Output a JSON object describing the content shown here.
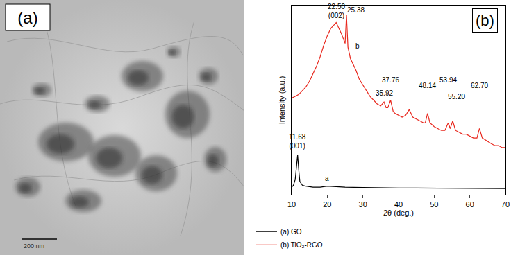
{
  "image_panel": {
    "label": "(a)",
    "scale_bar": "200 nm"
  },
  "chart_data": {
    "type": "line",
    "panel_label": "(b)",
    "x_label": "2θ (deg.)",
    "y_label": "Intensity (a.u.)",
    "xlim": [
      10,
      70
    ],
    "xticks": [
      10,
      20,
      30,
      40,
      50,
      60,
      70
    ],
    "ylim": [
      0,
      100
    ],
    "yticks": [],
    "tick_labels": "x",
    "grid": false,
    "legend": "bottom left",
    "series": [
      {
        "name": "(a) GO",
        "color": "#000000",
        "x": [
          10,
          10.5,
          11,
          11.3,
          11.68,
          12,
          12.3,
          13,
          14,
          16,
          18,
          20,
          25,
          30,
          35,
          40,
          45,
          50,
          55,
          60,
          65,
          70
        ],
        "values": [
          4,
          5,
          8,
          14,
          21,
          13,
          7,
          5,
          4.5,
          4,
          4,
          4.5,
          4,
          3.8,
          3.6,
          3.5,
          3.5,
          3.4,
          3.3,
          3.3,
          3.2,
          3.2
        ]
      },
      {
        "name": "(b) TiO₂-RGO",
        "color": "#e8281e",
        "x": [
          10,
          11,
          12,
          13,
          14,
          15,
          16,
          17,
          18,
          19,
          20,
          21,
          22,
          22.5,
          23,
          24,
          25,
          25.38,
          25.8,
          26.5,
          27,
          28,
          29,
          30,
          31,
          32,
          33,
          34,
          35,
          35.92,
          36.5,
          37,
          37.76,
          38.5,
          39,
          40,
          41,
          42,
          43,
          44,
          45,
          46,
          47,
          47.5,
          48.14,
          48.8,
          50,
          51,
          52,
          53,
          53.94,
          54.5,
          55.2,
          56,
          57,
          58,
          59,
          60,
          61,
          62,
          62.7,
          63.5,
          65,
          66,
          67,
          68,
          69,
          70
        ],
        "values": [
          51,
          52,
          53,
          55,
          57,
          60,
          64,
          68,
          73,
          79,
          84,
          88,
          90,
          91,
          89,
          85,
          80,
          95,
          78,
          72,
          70,
          66,
          61,
          58,
          55,
          52,
          50,
          48,
          47,
          49,
          46,
          46,
          50,
          44,
          43,
          42,
          41,
          42,
          45,
          41,
          40,
          39,
          38,
          38,
          43,
          38,
          36,
          35,
          34,
          34,
          38,
          35,
          39,
          34,
          33,
          32,
          32,
          31,
          30,
          30,
          35,
          30,
          28,
          27,
          26,
          26,
          25,
          25
        ]
      }
    ],
    "annotations": [
      {
        "text": "22.50\n(002)",
        "x": 22.5,
        "y": 92
      },
      {
        "text": "25.38",
        "x": 28,
        "y": 95
      },
      {
        "text": "b",
        "x": 28.5,
        "y": 76
      },
      {
        "text": "35.92",
        "x": 35.92,
        "y": 51
      },
      {
        "text": "37.76",
        "x": 37.76,
        "y": 58
      },
      {
        "text": "48.14",
        "x": 48.14,
        "y": 55
      },
      {
        "text": "53.94",
        "x": 53.94,
        "y": 58
      },
      {
        "text": "55.20",
        "x": 56.2,
        "y": 49
      },
      {
        "text": "62.70",
        "x": 62.7,
        "y": 55
      },
      {
        "text": "11.68\n(001)",
        "x": 11.68,
        "y": 23
      },
      {
        "text": "a",
        "x": 20,
        "y": 6
      }
    ]
  }
}
